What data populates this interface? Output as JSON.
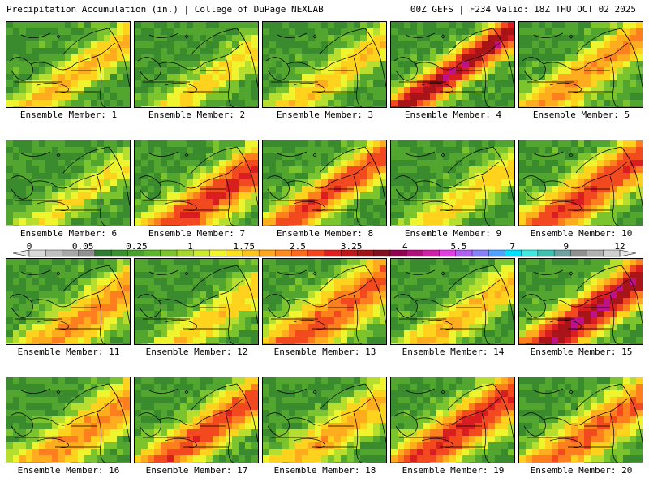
{
  "header": {
    "left": "Precipitation Accumulation (in.) | College of DuPage NEXLAB",
    "right": "00Z GEFS | F234 Valid: 18Z THU OCT 02 2025"
  },
  "panels": [
    {
      "label": "Ensemble Member: 1",
      "peak": 1.6,
      "axis": 0.55,
      "spread": 0.4
    },
    {
      "label": "Ensemble Member: 2",
      "peak": 1.2,
      "axis": 0.35,
      "spread": 0.4
    },
    {
      "label": "Ensemble Member: 3",
      "peak": 1.4,
      "axis": 0.5,
      "spread": 0.4
    },
    {
      "label": "Ensemble Member: 4",
      "peak": 3.5,
      "axis": 0.7,
      "spread": 0.35
    },
    {
      "label": "Ensemble Member: 5",
      "peak": 1.9,
      "axis": 0.6,
      "spread": 0.45
    },
    {
      "label": "Ensemble Member: 6",
      "peak": 1.1,
      "axis": 0.45,
      "spread": 0.35
    },
    {
      "label": "Ensemble Member: 7",
      "peak": 2.8,
      "axis": 0.35,
      "spread": 0.5
    },
    {
      "label": "Ensemble Member: 8",
      "peak": 2.6,
      "axis": 0.6,
      "spread": 0.4
    },
    {
      "label": "Ensemble Member: 9",
      "peak": 1.3,
      "axis": 0.4,
      "spread": 0.4
    },
    {
      "label": "Ensemble Member: 10",
      "peak": 2.7,
      "axis": 0.55,
      "spread": 0.5
    },
    {
      "label": "Ensemble Member: 11",
      "peak": 2.0,
      "axis": 0.3,
      "spread": 0.5
    },
    {
      "label": "Ensemble Member: 12",
      "peak": 1.4,
      "axis": 0.3,
      "spread": 0.4
    },
    {
      "label": "Ensemble Member: 13",
      "peak": 2.4,
      "axis": 0.5,
      "spread": 0.55
    },
    {
      "label": "Ensemble Member: 14",
      "peak": 1.6,
      "axis": 0.45,
      "spread": 0.4
    },
    {
      "label": "Ensemble Member: 15",
      "peak": 3.6,
      "axis": 0.5,
      "spread": 0.45
    },
    {
      "label": "Ensemble Member: 16",
      "peak": 2.0,
      "axis": 0.4,
      "spread": 0.5
    },
    {
      "label": "Ensemble Member: 17",
      "peak": 2.6,
      "axis": 0.5,
      "spread": 0.45
    },
    {
      "label": "Ensemble Member: 18",
      "peak": 1.7,
      "axis": 0.45,
      "spread": 0.45
    },
    {
      "label": "Ensemble Member: 19",
      "peak": 2.9,
      "axis": 0.55,
      "spread": 0.5
    },
    {
      "label": "Ensemble Member: 20",
      "peak": 2.3,
      "axis": 0.45,
      "spread": 0.5
    }
  ],
  "colorbar": {
    "labels": [
      "0",
      "0.05",
      "0.25",
      "1",
      "1.75",
      "2.5",
      "3.25",
      "4",
      "5.5",
      "7",
      "9",
      "12"
    ],
    "colors": [
      "#d8d8d8",
      "#c0c0c0",
      "#a8a8a8",
      "#909090",
      "#2e7d32",
      "#3a8f2e",
      "#4aa02e",
      "#5db52e",
      "#7cc42e",
      "#a4d62e",
      "#ccea2e",
      "#f0f52e",
      "#ffe01e",
      "#ffc41e",
      "#ffa81e",
      "#ff8a1e",
      "#ff6a1e",
      "#f4461e",
      "#e02020",
      "#c01818",
      "#a01418",
      "#801020",
      "#900050",
      "#b0107a",
      "#d020a8",
      "#e040e0",
      "#b060f0",
      "#8a80f8",
      "#50a0ff",
      "#00e0ff",
      "#40e8e0",
      "#40c0b0",
      "#70a0a0",
      "#909090",
      "#b0b0b0",
      "#d0d0d0"
    ]
  }
}
